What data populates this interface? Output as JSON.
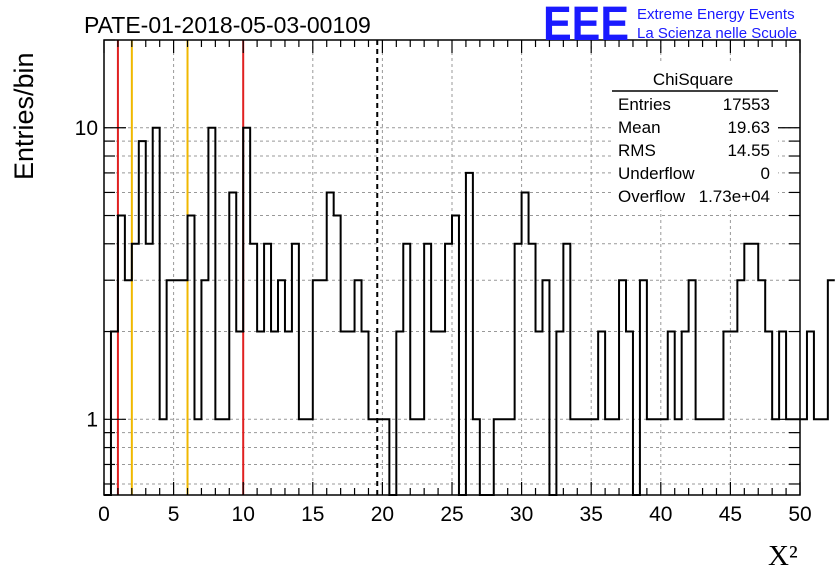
{
  "chart_data": {
    "type": "histogram",
    "title": "PATE-01-2018-05-03-00109",
    "xlabel": "X²",
    "ylabel": "Entries/bin",
    "xlim": [
      0,
      50
    ],
    "ylim": [
      0.55,
      20
    ],
    "yscale": "log",
    "grid": true,
    "x_ticks": [
      "0",
      "5",
      "10",
      "15",
      "20",
      "25",
      "30",
      "35",
      "40",
      "45",
      "50"
    ],
    "y_ticks": [
      "1",
      "10"
    ],
    "bin_width": 0.5,
    "values": [
      0,
      2,
      5,
      3,
      4,
      9,
      4,
      10,
      1,
      3,
      3,
      3,
      5,
      1,
      3,
      10,
      1,
      1,
      6,
      2,
      10,
      4,
      2,
      4,
      2,
      3,
      2,
      4,
      1,
      1,
      3,
      3,
      6,
      5,
      2,
      2,
      3,
      2,
      1,
      1,
      1,
      0,
      2,
      4,
      1,
      1,
      4,
      2,
      2,
      4,
      5,
      0,
      7,
      1,
      0,
      0,
      1,
      1,
      1,
      4,
      6,
      4,
      2,
      3,
      0,
      2,
      4,
      1,
      1,
      1,
      1,
      2,
      1,
      1,
      3,
      2,
      0,
      3,
      1,
      1,
      1,
      2,
      1,
      2,
      3,
      1,
      1,
      1,
      1,
      2,
      2,
      3,
      4,
      4,
      3,
      2,
      1,
      2,
      1,
      1,
      1,
      2,
      1,
      1,
      3
    ],
    "vertical_lines": [
      {
        "x": 1,
        "color": "#e02020"
      },
      {
        "x": 2,
        "color": "#f0b800"
      },
      {
        "x": 6,
        "color": "#f0b800"
      },
      {
        "x": 10,
        "color": "#e02020"
      },
      {
        "x": 19.63,
        "color": "#000000",
        "style": "dashed"
      }
    ]
  },
  "stats": {
    "title": "ChiSquare",
    "rows": [
      {
        "label": "Entries",
        "value": "17553"
      },
      {
        "label": "Mean",
        "value": "19.63"
      },
      {
        "label": "RMS",
        "value": "14.55"
      },
      {
        "label": "Underflow",
        "value": "0"
      },
      {
        "label": "Overflow",
        "value": "1.73e+04"
      }
    ]
  },
  "logo": {
    "mark": "EEE",
    "line1": "Extreme Energy Events",
    "line2": "La Scienza nelle Scuole",
    "color": "#1a1aff"
  }
}
